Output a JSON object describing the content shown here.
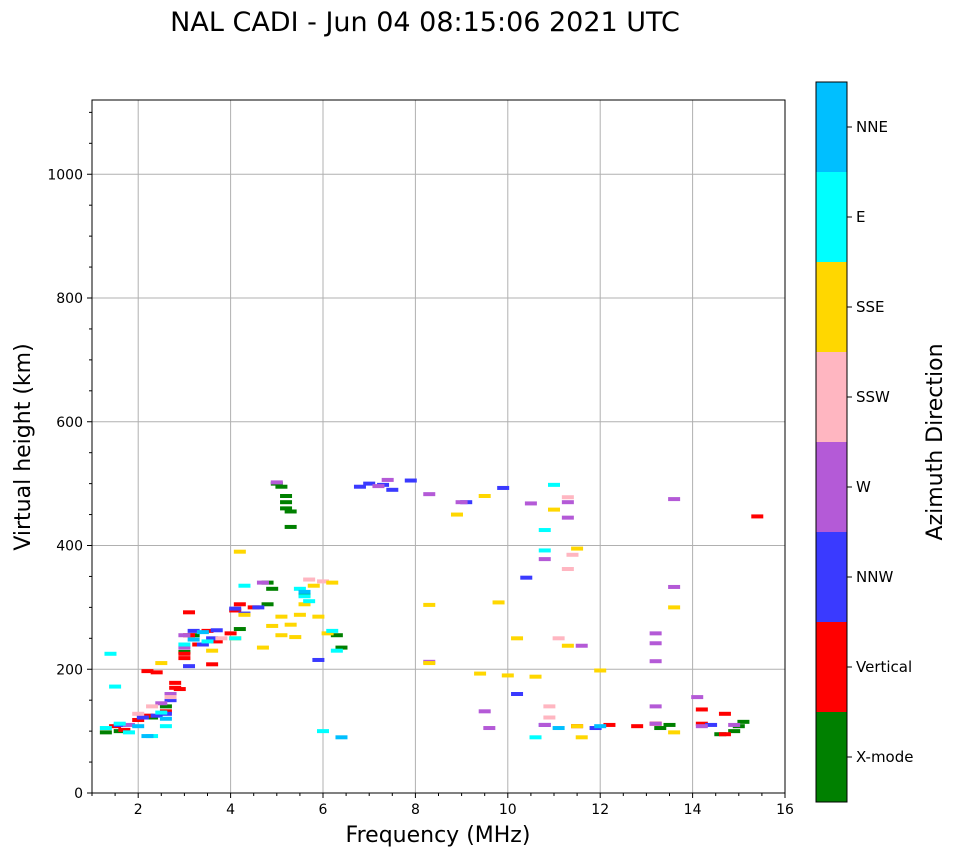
{
  "chart_data": {
    "type": "scatter",
    "title": "NAL CADI - Jun 04 08:15:06 2021 UTC",
    "xlabel": "Frequency (MHz)",
    "ylabel": "Virtual height (km)",
    "xlim": [
      1,
      16
    ],
    "ylim": [
      0,
      1120
    ],
    "xticks": [
      2,
      4,
      6,
      8,
      10,
      12,
      14,
      16
    ],
    "yticks": [
      0,
      200,
      400,
      600,
      800,
      1000
    ],
    "grid": true,
    "colorbar": {
      "label": "Azimuth Direction",
      "categories": [
        {
          "name": "X-mode",
          "color": "#008000"
        },
        {
          "name": "Vertical",
          "color": "#ff0000"
        },
        {
          "name": "NNW",
          "color": "#3a3aff"
        },
        {
          "name": "W",
          "color": "#b45ad7"
        },
        {
          "name": "SSW",
          "color": "#ffb6c1"
        },
        {
          "name": "SSE",
          "color": "#ffd700"
        },
        {
          "name": "E",
          "color": "#00ffff"
        },
        {
          "name": "NNE",
          "color": "#00bfff"
        }
      ]
    },
    "series": [
      {
        "name": "X-mode",
        "points": [
          [
            1.3,
            98
          ],
          [
            1.6,
            100
          ],
          [
            2.3,
            122
          ],
          [
            2.6,
            140
          ],
          [
            3.0,
            228
          ],
          [
            3.2,
            255
          ],
          [
            4.2,
            265
          ],
          [
            4.8,
            305
          ],
          [
            4.9,
            330
          ],
          [
            4.8,
            340
          ],
          [
            5.0,
            500
          ],
          [
            5.1,
            495
          ],
          [
            5.2,
            480
          ],
          [
            5.2,
            470
          ],
          [
            5.2,
            460
          ],
          [
            5.3,
            430
          ],
          [
            5.3,
            455
          ],
          [
            5.6,
            320
          ],
          [
            6.3,
            255
          ],
          [
            6.4,
            235
          ],
          [
            13.3,
            105
          ],
          [
            13.5,
            110
          ],
          [
            14.6,
            95
          ],
          [
            14.9,
            100
          ],
          [
            15.1,
            115
          ],
          [
            15.0,
            108
          ]
        ]
      },
      {
        "name": "Vertical",
        "points": [
          [
            1.5,
            108
          ],
          [
            1.7,
            102
          ],
          [
            2.0,
            118
          ],
          [
            2.2,
            125
          ],
          [
            2.2,
            197
          ],
          [
            2.4,
            195
          ],
          [
            2.6,
            132
          ],
          [
            2.8,
            170
          ],
          [
            2.8,
            178
          ],
          [
            2.9,
            168
          ],
          [
            3.0,
            225
          ],
          [
            3.0,
            218
          ],
          [
            3.1,
            255
          ],
          [
            3.1,
            292
          ],
          [
            3.3,
            240
          ],
          [
            3.5,
            262
          ],
          [
            3.6,
            208
          ],
          [
            3.7,
            245
          ],
          [
            4.0,
            258
          ],
          [
            4.1,
            295
          ],
          [
            4.2,
            305
          ],
          [
            4.5,
            300
          ],
          [
            11.5,
            108
          ],
          [
            12.2,
            110
          ],
          [
            12.8,
            108
          ],
          [
            13.2,
            112
          ],
          [
            14.2,
            112
          ],
          [
            14.2,
            135
          ],
          [
            14.7,
            128
          ],
          [
            14.7,
            95
          ],
          [
            15.4,
            447
          ]
        ]
      },
      {
        "name": "NNW",
        "points": [
          [
            1.6,
            110
          ],
          [
            2.1,
            122
          ],
          [
            2.4,
            125
          ],
          [
            2.6,
            128
          ],
          [
            2.7,
            150
          ],
          [
            3.1,
            205
          ],
          [
            3.2,
            262
          ],
          [
            3.4,
            240
          ],
          [
            3.6,
            250
          ],
          [
            3.7,
            263
          ],
          [
            4.1,
            298
          ],
          [
            4.3,
            290
          ],
          [
            4.6,
            300
          ],
          [
            5.9,
            215
          ],
          [
            6.8,
            495
          ],
          [
            7.0,
            500
          ],
          [
            7.3,
            498
          ],
          [
            7.5,
            490
          ],
          [
            7.9,
            505
          ],
          [
            9.1,
            470
          ],
          [
            9.9,
            493
          ],
          [
            10.2,
            160
          ],
          [
            10.4,
            348
          ],
          [
            10.8,
            110
          ],
          [
            11.9,
            105
          ],
          [
            14.4,
            110
          ]
        ]
      },
      {
        "name": "W",
        "points": [
          [
            1.8,
            110
          ],
          [
            2.5,
            145
          ],
          [
            2.7,
            160
          ],
          [
            3.0,
            255
          ],
          [
            3.0,
            235
          ],
          [
            4.7,
            340
          ],
          [
            5.0,
            502
          ],
          [
            7.2,
            496
          ],
          [
            7.4,
            506
          ],
          [
            8.3,
            483
          ],
          [
            8.3,
            212
          ],
          [
            9.0,
            470
          ],
          [
            9.5,
            132
          ],
          [
            9.6,
            105
          ],
          [
            10.5,
            468
          ],
          [
            10.8,
            110
          ],
          [
            10.8,
            378
          ],
          [
            11.3,
            470
          ],
          [
            11.3,
            445
          ],
          [
            11.6,
            238
          ],
          [
            13.2,
            258
          ],
          [
            13.2,
            242
          ],
          [
            13.2,
            213
          ],
          [
            13.2,
            140
          ],
          [
            13.2,
            112
          ],
          [
            13.6,
            475
          ],
          [
            13.6,
            333
          ],
          [
            14.1,
            155
          ],
          [
            14.2,
            108
          ],
          [
            14.9,
            110
          ]
        ]
      },
      {
        "name": "SSW",
        "points": [
          [
            2.0,
            128
          ],
          [
            2.3,
            140
          ],
          [
            2.7,
            155
          ],
          [
            3.8,
            250
          ],
          [
            5.7,
            345
          ],
          [
            6.0,
            342
          ],
          [
            10.9,
            140
          ],
          [
            10.9,
            122
          ],
          [
            11.1,
            250
          ],
          [
            11.3,
            478
          ],
          [
            11.3,
            362
          ],
          [
            11.4,
            385
          ]
        ]
      },
      {
        "name": "SSE",
        "points": [
          [
            2.5,
            210
          ],
          [
            3.6,
            230
          ],
          [
            4.1,
            250
          ],
          [
            4.2,
            390
          ],
          [
            4.3,
            288
          ],
          [
            4.7,
            235
          ],
          [
            4.9,
            270
          ],
          [
            5.1,
            285
          ],
          [
            5.1,
            255
          ],
          [
            5.3,
            272
          ],
          [
            5.4,
            252
          ],
          [
            5.5,
            288
          ],
          [
            5.6,
            305
          ],
          [
            5.8,
            335
          ],
          [
            5.9,
            285
          ],
          [
            6.1,
            258
          ],
          [
            6.2,
            340
          ],
          [
            8.3,
            304
          ],
          [
            8.3,
            210
          ],
          [
            8.9,
            450
          ],
          [
            9.4,
            193
          ],
          [
            9.5,
            480
          ],
          [
            9.8,
            308
          ],
          [
            10.0,
            190
          ],
          [
            10.2,
            250
          ],
          [
            10.6,
            188
          ],
          [
            11.0,
            458
          ],
          [
            11.3,
            238
          ],
          [
            11.5,
            395
          ],
          [
            11.5,
            108
          ],
          [
            11.6,
            90
          ],
          [
            12.0,
            198
          ],
          [
            13.6,
            300
          ],
          [
            13.6,
            98
          ]
        ]
      },
      {
        "name": "E",
        "points": [
          [
            1.4,
            225
          ],
          [
            1.5,
            172
          ],
          [
            1.3,
            105
          ],
          [
            1.6,
            112
          ],
          [
            1.8,
            98
          ],
          [
            2.3,
            92
          ],
          [
            2.5,
            130
          ],
          [
            2.6,
            108
          ],
          [
            3.0,
            240
          ],
          [
            3.5,
            245
          ],
          [
            4.3,
            335
          ],
          [
            4.1,
            250
          ],
          [
            5.5,
            330
          ],
          [
            5.6,
            318
          ],
          [
            5.7,
            310
          ],
          [
            6.2,
            262
          ],
          [
            6.0,
            100
          ],
          [
            6.3,
            230
          ],
          [
            10.6,
            90
          ],
          [
            10.8,
            425
          ],
          [
            10.8,
            392
          ],
          [
            11.0,
            498
          ]
        ]
      },
      {
        "name": "NNE",
        "points": [
          [
            2.0,
            108
          ],
          [
            2.2,
            92
          ],
          [
            2.6,
            120
          ],
          [
            3.2,
            248
          ],
          [
            3.4,
            260
          ],
          [
            5.6,
            325
          ],
          [
            6.4,
            90
          ],
          [
            11.1,
            105
          ],
          [
            12.0,
            108
          ]
        ]
      }
    ]
  }
}
